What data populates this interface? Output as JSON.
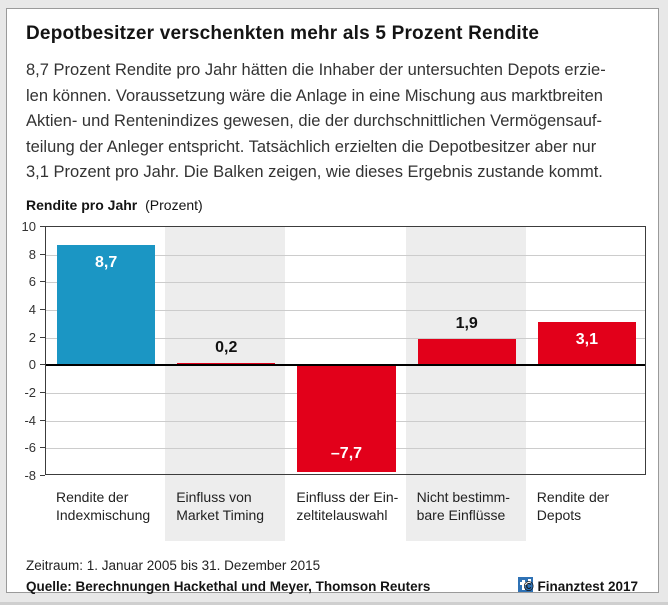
{
  "panel": {
    "title": "Depotbesitzer verschenkten mehr als 5 Prozent Rendite",
    "intro_lines": [
      "8,7 Prozent Rendite pro Jahr hätten die Inhaber der untersuchten Depots erzie-",
      "len können. Voraussetzung wäre die Anlage in eine Mischung aus marktbreiten",
      "Aktien- und Rentenindizes gewesen, die der durchschnittlichen Vermögensauf-",
      "teilung der Anleger entspricht. Tatsächlich erzielten die Depotbesitzer aber nur",
      "3,1 Prozent pro Jahr. Die Balken zeigen, wie dieses Ergebnis zustande kommt."
    ]
  },
  "chart_data": {
    "type": "bar",
    "title": "Rendite pro Jahr",
    "unit": "(Prozent)",
    "categories": [
      "Rendite der Indexmischung",
      "Einfluss von Market Timing",
      "Einfluss der Einzeltitelauswahl",
      "Nicht bestimmbare Einflüsse",
      "Rendite der Depots"
    ],
    "category_label_lines": [
      [
        "Rendite der",
        "Indexmischung"
      ],
      [
        "Einfluss von",
        "Market Timing"
      ],
      [
        "Einfluss der Ein-",
        "zeltitelauswahl"
      ],
      [
        "Nicht bestimm-",
        "bare Einflüsse"
      ],
      [
        "Rendite der",
        "Depots"
      ]
    ],
    "values": [
      8.7,
      0.2,
      -7.7,
      1.9,
      3.1
    ],
    "value_labels": [
      "8,7",
      "0,2",
      "–7,7",
      "1,9",
      "3,1"
    ],
    "series_colors": [
      "#1b96c4",
      "#e2001a",
      "#e2001a",
      "#e2001a",
      "#e2001a"
    ],
    "ylim": [
      -8,
      10
    ],
    "yticks": [
      10,
      8,
      6,
      4,
      2,
      0,
      -2,
      -4,
      -6,
      -8
    ],
    "shaded_columns": [
      1,
      3
    ],
    "grid": true,
    "legend": "none",
    "xlabel": "",
    "ylabel": "Rendite pro Jahr (Prozent)"
  },
  "footer": {
    "period": "Zeitraum: 1. Januar 2005 bis 31. Dezember 2015",
    "source": "Quelle: Berechnungen Hackethal und Meyer, Thomson Reuters",
    "copyright": "© Finanztest 2017",
    "logo": "finanztest-logo"
  },
  "colors": {
    "accent_blue": "#1b96c4",
    "brand_red": "#e2001a",
    "stripe_gray": "#ededed",
    "grid_gray": "#cccccc",
    "axis_dark": "#3c3c3c",
    "zero_line": "#000000",
    "logo_blue": "#2f72b5",
    "page_bg": "#e8e8e8"
  }
}
